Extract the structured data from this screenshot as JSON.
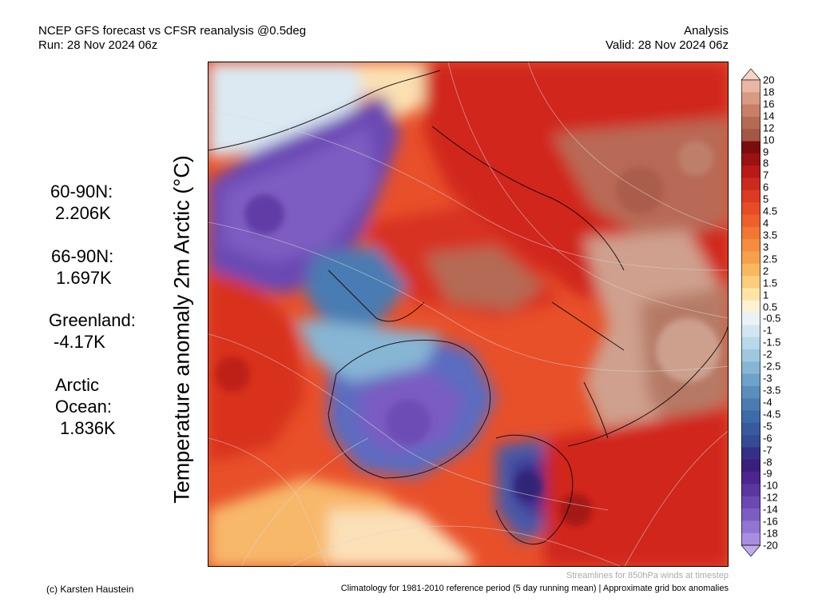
{
  "header": {
    "title": "NCEP GFS forecast vs CFSR reanalysis @0.5deg",
    "run": "Run: 28 Nov 2024 06z",
    "type": "Analysis",
    "valid": "Valid: 28 Nov 2024 06z"
  },
  "map": {
    "ylabel": "Temperature anomaly 2m Arctic (°C)",
    "footnote": "Streamlines for 850hPa winds at timestep"
  },
  "stats": [
    {
      "label": "60-90N:",
      "value": "2.206K"
    },
    {
      "label": "66-90N:",
      "value": "1.697K"
    },
    {
      "label": "Greenland:",
      "value": "-4.17K"
    },
    {
      "label": "Arctic\nOcean:",
      "value": "1.836K"
    }
  ],
  "colorbar": {
    "labels": [
      "20",
      "18",
      "16",
      "14",
      "12",
      "10",
      "9",
      "8",
      "7",
      "6",
      "5",
      "4.5",
      "4",
      "3.5",
      "3",
      "2.5",
      "2",
      "1.5",
      "1",
      "0.5",
      "-0.5",
      "-1",
      "-1.5",
      "-2",
      "-2.5",
      "-3",
      "-3.5",
      "-4",
      "-4.5",
      "-5",
      "-6",
      "-7",
      "-8",
      "-9",
      "-10",
      "-12",
      "-14",
      "-16",
      "-18",
      "-20"
    ],
    "colors": [
      "#f6d3c4",
      "#e8b6a3",
      "#d99a83",
      "#c77f68",
      "#b56a54",
      "#a35744",
      "#7a0d0d",
      "#9a1212",
      "#b81a18",
      "#cc2a1e",
      "#dc3a22",
      "#e64c26",
      "#ee5f2c",
      "#f27634",
      "#f58c3e",
      "#f7a04c",
      "#f9b760",
      "#fbcd7c",
      "#fde4a6",
      "#fdf2d6",
      "#eaf2f8",
      "#d2e6f2",
      "#b9d8ea",
      "#9fc8e0",
      "#87b6d4",
      "#6fa2c8",
      "#5b8ebc",
      "#4a7cb2",
      "#3e6aa8",
      "#375a9e",
      "#344c94",
      "#352f86",
      "#3a1f7e",
      "#4a268e",
      "#5a36a0",
      "#6b48b2",
      "#7e5dc2",
      "#9274d2",
      "#a88ee0",
      "#c0aaec"
    ]
  },
  "credit": "(c) Karsten Haustein",
  "climatology": "Climatology for 1981-2010 reference period (5 day running mean) | Approximate grid box anomalies"
}
